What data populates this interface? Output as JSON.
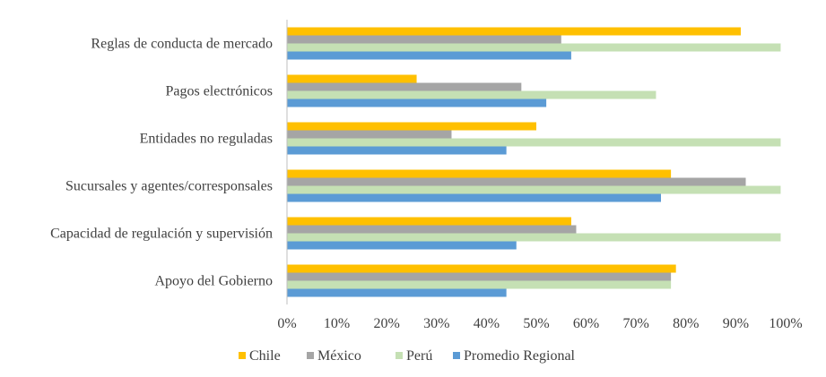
{
  "chart_data": {
    "type": "bar",
    "orientation": "horizontal",
    "title": "",
    "xlabel": "",
    "ylabel": "",
    "categories": [
      "Reglas de conducta de mercado",
      "Pagos electrónicos",
      "Entidades no reguladas",
      "Sucursales y agentes/corresponsales",
      "Capacidad de regulación y supervisión",
      "Apoyo del Gobierno"
    ],
    "series": [
      {
        "name": "Chile",
        "color": "#FFC000",
        "values": [
          0.91,
          0.26,
          0.5,
          0.77,
          0.57,
          0.78
        ]
      },
      {
        "name": "México",
        "color": "#A5A5A5",
        "values": [
          0.55,
          0.47,
          0.33,
          0.92,
          0.58,
          0.77
        ]
      },
      {
        "name": "Perú",
        "color": "#C5E0B4",
        "values": [
          0.99,
          0.74,
          0.99,
          0.99,
          0.99,
          0.77
        ]
      },
      {
        "name": "Promedio Regional",
        "color": "#5B9BD5",
        "values": [
          0.57,
          0.52,
          0.44,
          0.75,
          0.46,
          0.44
        ]
      }
    ],
    "xlim": [
      0,
      1
    ],
    "xticks": [
      0,
      0.1,
      0.2,
      0.3,
      0.4,
      0.5,
      0.6,
      0.7,
      0.8,
      0.9,
      1.0
    ],
    "xtick_labels": [
      "0%",
      "10%",
      "20%",
      "30%",
      "40%",
      "50%",
      "60%",
      "70%",
      "80%",
      "90%",
      "100%"
    ],
    "grid": false,
    "legend_position": "bottom"
  }
}
